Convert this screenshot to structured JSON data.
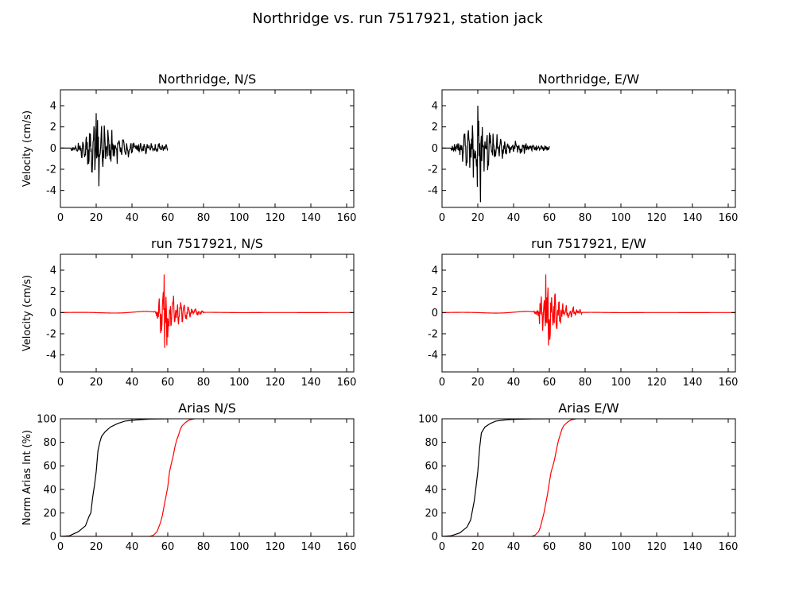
{
  "figure": {
    "title": "Northridge vs. run 7517921, station jack"
  },
  "chart_data": [
    {
      "id": "ax-ns-obs",
      "type": "line",
      "title": "Northridge, N/S",
      "xlabel": "",
      "ylabel": "Velocity (cm/s)",
      "xlim": [
        0,
        164
      ],
      "ylim": [
        -5.6,
        5.5
      ],
      "xticks": [
        0,
        20,
        40,
        60,
        80,
        100,
        120,
        140,
        160
      ],
      "yticks": [
        -4,
        -2,
        0,
        2,
        4
      ],
      "series": [
        {
          "color": "#000000",
          "kind": "waveform",
          "t_start": 0,
          "t_end": 60,
          "onset": 6,
          "peak_t": 20,
          "peak_amp": 3.3,
          "min_amp": -3.6,
          "rise": 6,
          "decay": 14,
          "floor": 0.25,
          "seed": 11
        }
      ]
    },
    {
      "id": "ax-ew-obs",
      "type": "line",
      "title": "Northridge, E/W",
      "xlabel": "",
      "ylabel": "",
      "xlim": [
        0,
        164
      ],
      "ylim": [
        -5.6,
        5.5
      ],
      "xticks": [
        0,
        20,
        40,
        60,
        80,
        100,
        120,
        140,
        160
      ],
      "yticks": [
        -4,
        -2,
        0,
        2,
        4
      ],
      "series": [
        {
          "color": "#000000",
          "kind": "waveform",
          "t_start": 0,
          "t_end": 60,
          "onset": 5,
          "peak_t": 20,
          "peak_amp": 4.0,
          "min_amp": -5.1,
          "rise": 6,
          "decay": 10,
          "floor": 0.25,
          "seed": 23
        }
      ]
    },
    {
      "id": "ax-ns-sim",
      "type": "line",
      "title": "run 7517921, N/S",
      "xlabel": "",
      "ylabel": "Velocity (cm/s)",
      "xlim": [
        0,
        164
      ],
      "ylim": [
        -5.6,
        5.5
      ],
      "xticks": [
        0,
        20,
        40,
        60,
        80,
        100,
        120,
        140,
        160
      ],
      "yticks": [
        -4,
        -2,
        0,
        2,
        4
      ],
      "series": [
        {
          "color": "#ff0000",
          "kind": "waveform",
          "t_start": 0,
          "t_end": 164,
          "onset": 52,
          "peak_t": 58,
          "peak_amp": 3.6,
          "min_amp": -3.1,
          "rise": 4,
          "decay": 8,
          "floor": 0.02,
          "end": 80,
          "swell": 0.12,
          "seed": 37
        }
      ]
    },
    {
      "id": "ax-ew-sim",
      "type": "line",
      "title": "run 7517921, E/W",
      "xlabel": "",
      "ylabel": "",
      "xlim": [
        0,
        164
      ],
      "ylim": [
        -5.6,
        5.5
      ],
      "xticks": [
        0,
        20,
        40,
        60,
        80,
        100,
        120,
        140,
        160
      ],
      "yticks": [
        -4,
        -2,
        0,
        2,
        4
      ],
      "series": [
        {
          "color": "#ff0000",
          "kind": "waveform",
          "t_start": 0,
          "t_end": 164,
          "onset": 51,
          "peak_t": 58,
          "peak_amp": 3.6,
          "min_amp": -3.1,
          "rise": 4,
          "decay": 8,
          "floor": 0.02,
          "end": 78,
          "swell": 0.12,
          "seed": 41
        }
      ]
    },
    {
      "id": "ax-ns-arias",
      "type": "line",
      "title": "Arias N/S",
      "xlabel": "",
      "ylabel": "Norm Arias Int (%)",
      "xlim": [
        0,
        164
      ],
      "ylim": [
        0,
        100
      ],
      "xticks": [
        0,
        20,
        40,
        60,
        80,
        100,
        120,
        140,
        160
      ],
      "yticks": [
        0,
        20,
        40,
        60,
        80,
        100
      ],
      "series": [
        {
          "color": "#000000",
          "kind": "cumulative",
          "x": [
            0,
            5,
            10,
            14,
            16,
            17,
            18,
            19,
            20,
            21,
            22,
            23,
            25,
            28,
            32,
            36,
            42,
            50,
            60
          ],
          "y": [
            0,
            0.5,
            4,
            9,
            17,
            20,
            33,
            43,
            55,
            73,
            80,
            85,
            89,
            93,
            96,
            98,
            99,
            99.8,
            100
          ]
        },
        {
          "color": "#ff0000",
          "kind": "cumulative",
          "x": [
            0,
            50,
            52,
            54,
            55,
            56,
            57,
            58,
            59,
            60,
            61,
            62,
            63,
            64,
            65,
            66,
            67,
            68,
            70,
            72,
            75
          ],
          "y": [
            0,
            0,
            1,
            4,
            8,
            12,
            18,
            26,
            34,
            42,
            55,
            62,
            68,
            76,
            82,
            86,
            91,
            94,
            97,
            99,
            100
          ]
        }
      ]
    },
    {
      "id": "ax-ew-arias",
      "type": "line",
      "title": "Arias E/W",
      "xlabel": "",
      "ylabel": "",
      "xlim": [
        0,
        164
      ],
      "ylim": [
        0,
        100
      ],
      "xticks": [
        0,
        20,
        40,
        60,
        80,
        100,
        120,
        140,
        160
      ],
      "yticks": [
        0,
        20,
        40,
        60,
        80,
        100
      ],
      "series": [
        {
          "color": "#000000",
          "kind": "cumulative",
          "x": [
            0,
            5,
            10,
            14,
            16,
            17,
            18,
            19,
            20,
            21,
            22,
            24,
            27,
            30,
            35,
            40,
            50,
            60
          ],
          "y": [
            0,
            0.5,
            3,
            8,
            14,
            22,
            30,
            42,
            55,
            75,
            88,
            93,
            96,
            98,
            99,
            99.6,
            99.9,
            100
          ]
        },
        {
          "color": "#ff0000",
          "kind": "cumulative",
          "x": [
            0,
            50,
            52,
            54,
            55,
            56,
            57,
            58,
            59,
            60,
            61,
            62,
            63,
            64,
            65,
            66,
            67,
            68,
            70,
            72,
            75
          ],
          "y": [
            0,
            0,
            1,
            4,
            8,
            14,
            20,
            28,
            36,
            46,
            55,
            60,
            66,
            74,
            81,
            86,
            91,
            94,
            97,
            99,
            100
          ]
        }
      ]
    }
  ]
}
